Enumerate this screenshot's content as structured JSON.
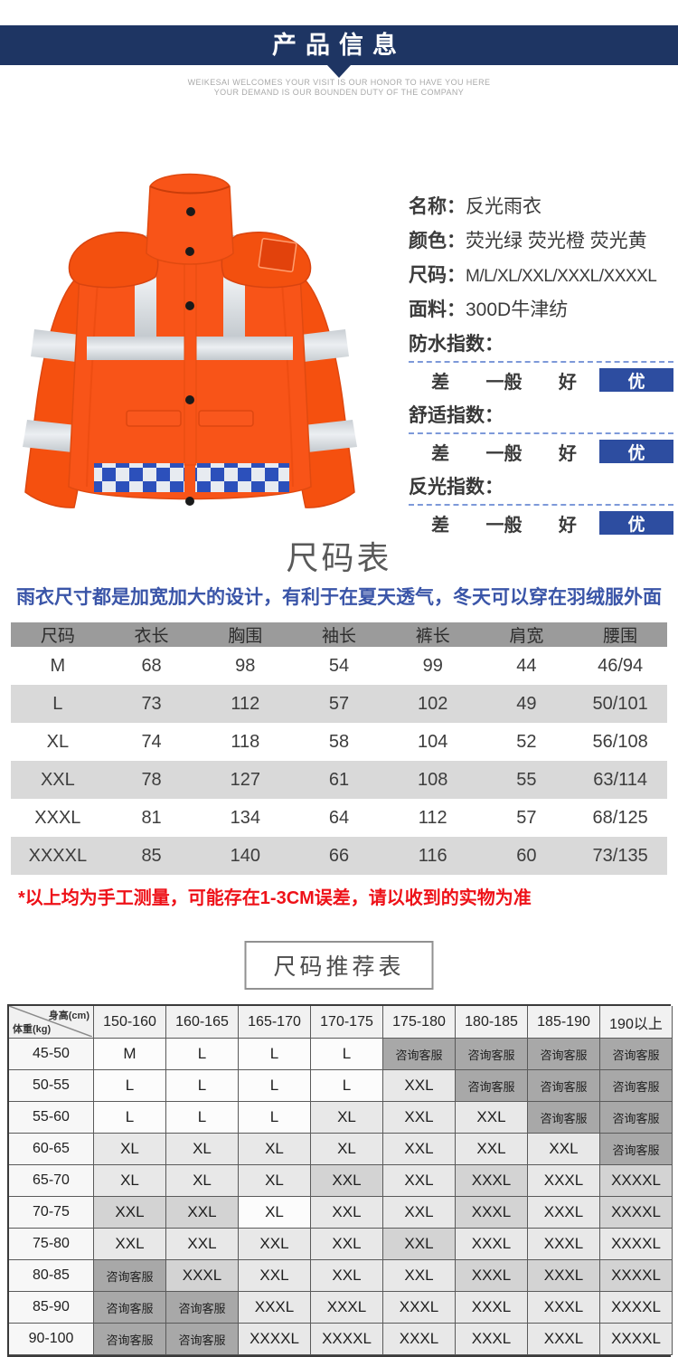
{
  "colors": {
    "header_bar": "#1e3563",
    "highlight_box": "#2d4da0",
    "subtitle_blue": "#3a55a8",
    "note_red": "#ee1118",
    "table_header_gray": "#9b9b9b",
    "table_alt_row": "#d9d9d9",
    "consult_cell_gray": "#a8a8a8",
    "jacket_orange": "#f85418",
    "checker_blue": "#2c50bb"
  },
  "header": {
    "title": "产品信息",
    "tagline1": "WEIKESAI WELCOMES YOUR VISIT IS OUR HONOR TO HAVE YOU HERE",
    "tagline2": "YOUR DEMAND IS OUR BOUNDEN DUTY OF THE COMPANY"
  },
  "product": {
    "details": [
      {
        "label": "名称：",
        "value": "反光雨衣"
      },
      {
        "label": "颜色：",
        "value": "荧光绿 荧光橙 荧光黄"
      },
      {
        "label": "尺码：",
        "value": "M/L/XL/XXL/XXXL/XXXXL"
      },
      {
        "label": "面料：",
        "value": "300D牛津纺"
      }
    ],
    "indices": [
      {
        "label": "防水指数：",
        "scale": [
          "差",
          "一般",
          "好"
        ],
        "selected": "优"
      },
      {
        "label": "舒适指数：",
        "scale": [
          "差",
          "一般",
          "好"
        ],
        "selected": "优"
      },
      {
        "label": "反光指数：",
        "scale": [
          "差",
          "一般",
          "好"
        ],
        "selected": "优"
      }
    ]
  },
  "size_chart": {
    "title": "尺码表",
    "subtitle": "雨衣尺寸都是加宽加大的设计，有利于在夏天透气，冬天可以穿在羽绒服外面",
    "columns": [
      "尺码",
      "衣长",
      "胸围",
      "袖长",
      "裤长",
      "肩宽",
      "腰围"
    ],
    "rows": [
      [
        "M",
        "68",
        "98",
        "54",
        "99",
        "44",
        "46/94"
      ],
      [
        "L",
        "73",
        "112",
        "57",
        "102",
        "49",
        "50/101"
      ],
      [
        "XL",
        "74",
        "118",
        "58",
        "104",
        "52",
        "56/108"
      ],
      [
        "XXL",
        "78",
        "127",
        "61",
        "108",
        "55",
        "63/114"
      ],
      [
        "XXXL",
        "81",
        "134",
        "64",
        "112",
        "57",
        "68/125"
      ],
      [
        "XXXXL",
        "85",
        "140",
        "66",
        "116",
        "60",
        "73/135"
      ]
    ],
    "note": "*以上均为手工测量，可能存在1-3CM误差，请以收到的实物为准"
  },
  "recommend": {
    "title": "尺码推荐表",
    "corner_top": "身高(cm)",
    "corner_bottom": "体重(kg)",
    "height_cols": [
      "150-160",
      "160-165",
      "165-170",
      "170-175",
      "175-180",
      "180-185",
      "185-190",
      "190以上"
    ],
    "rows": [
      {
        "weight": "45-50",
        "cells": [
          [
            "M",
            "w"
          ],
          [
            "L",
            "w"
          ],
          [
            "L",
            "w"
          ],
          [
            "L",
            "w"
          ],
          [
            "咨询客服",
            "d"
          ],
          [
            "咨询客服",
            "d"
          ],
          [
            "咨询客服",
            "d"
          ],
          [
            "咨询客服",
            "d"
          ]
        ]
      },
      {
        "weight": "50-55",
        "cells": [
          [
            "L",
            "w"
          ],
          [
            "L",
            "w"
          ],
          [
            "L",
            "w"
          ],
          [
            "L",
            "w"
          ],
          [
            "XXL",
            "l"
          ],
          [
            "咨询客服",
            "d"
          ],
          [
            "咨询客服",
            "d"
          ],
          [
            "咨询客服",
            "d"
          ]
        ]
      },
      {
        "weight": "55-60",
        "cells": [
          [
            "L",
            "w"
          ],
          [
            "L",
            "w"
          ],
          [
            "L",
            "w"
          ],
          [
            "XL",
            "l"
          ],
          [
            "XXL",
            "l"
          ],
          [
            "XXL",
            "l"
          ],
          [
            "咨询客服",
            "d"
          ],
          [
            "咨询客服",
            "d"
          ]
        ]
      },
      {
        "weight": "60-65",
        "cells": [
          [
            "XL",
            "l"
          ],
          [
            "XL",
            "l"
          ],
          [
            "XL",
            "l"
          ],
          [
            "XL",
            "l"
          ],
          [
            "XXL",
            "l"
          ],
          [
            "XXL",
            "l"
          ],
          [
            "XXL",
            "l"
          ],
          [
            "咨询客服",
            "d"
          ]
        ]
      },
      {
        "weight": "65-70",
        "cells": [
          [
            "XL",
            "l"
          ],
          [
            "XL",
            "l"
          ],
          [
            "XL",
            "l"
          ],
          [
            "XXL",
            "g"
          ],
          [
            "XXL",
            "l"
          ],
          [
            "XXXL",
            "g"
          ],
          [
            "XXXL",
            "l"
          ],
          [
            "XXXXL",
            "g"
          ]
        ]
      },
      {
        "weight": "70-75",
        "cells": [
          [
            "XXL",
            "g"
          ],
          [
            "XXL",
            "g"
          ],
          [
            "XL",
            "w"
          ],
          [
            "XXL",
            "l"
          ],
          [
            "XXL",
            "l"
          ],
          [
            "XXXL",
            "g"
          ],
          [
            "XXXL",
            "l"
          ],
          [
            "XXXXL",
            "g"
          ]
        ]
      },
      {
        "weight": "75-80",
        "cells": [
          [
            "XXL",
            "l"
          ],
          [
            "XXL",
            "l"
          ],
          [
            "XXL",
            "l"
          ],
          [
            "XXL",
            "l"
          ],
          [
            "XXL",
            "g"
          ],
          [
            "XXXL",
            "l"
          ],
          [
            "XXXL",
            "l"
          ],
          [
            "XXXXL",
            "l"
          ]
        ]
      },
      {
        "weight": "80-85",
        "cells": [
          [
            "咨询客服",
            "d"
          ],
          [
            "XXXL",
            "g"
          ],
          [
            "XXL",
            "l"
          ],
          [
            "XXL",
            "l"
          ],
          [
            "XXL",
            "l"
          ],
          [
            "XXXL",
            "g"
          ],
          [
            "XXXL",
            "g"
          ],
          [
            "XXXXL",
            "g"
          ]
        ]
      },
      {
        "weight": "85-90",
        "cells": [
          [
            "咨询客服",
            "d"
          ],
          [
            "咨询客服",
            "d"
          ],
          [
            "XXXL",
            "l"
          ],
          [
            "XXXL",
            "l"
          ],
          [
            "XXXL",
            "l"
          ],
          [
            "XXXL",
            "l"
          ],
          [
            "XXXL",
            "l"
          ],
          [
            "XXXXL",
            "l"
          ]
        ]
      },
      {
        "weight": "90-100",
        "cells": [
          [
            "咨询客服",
            "d"
          ],
          [
            "咨询客服",
            "d"
          ],
          [
            "XXXXL",
            "l"
          ],
          [
            "XXXXL",
            "l"
          ],
          [
            "XXXL",
            "l"
          ],
          [
            "XXXL",
            "l"
          ],
          [
            "XXXL",
            "l"
          ],
          [
            "XXXXL",
            "l"
          ]
        ]
      }
    ]
  }
}
